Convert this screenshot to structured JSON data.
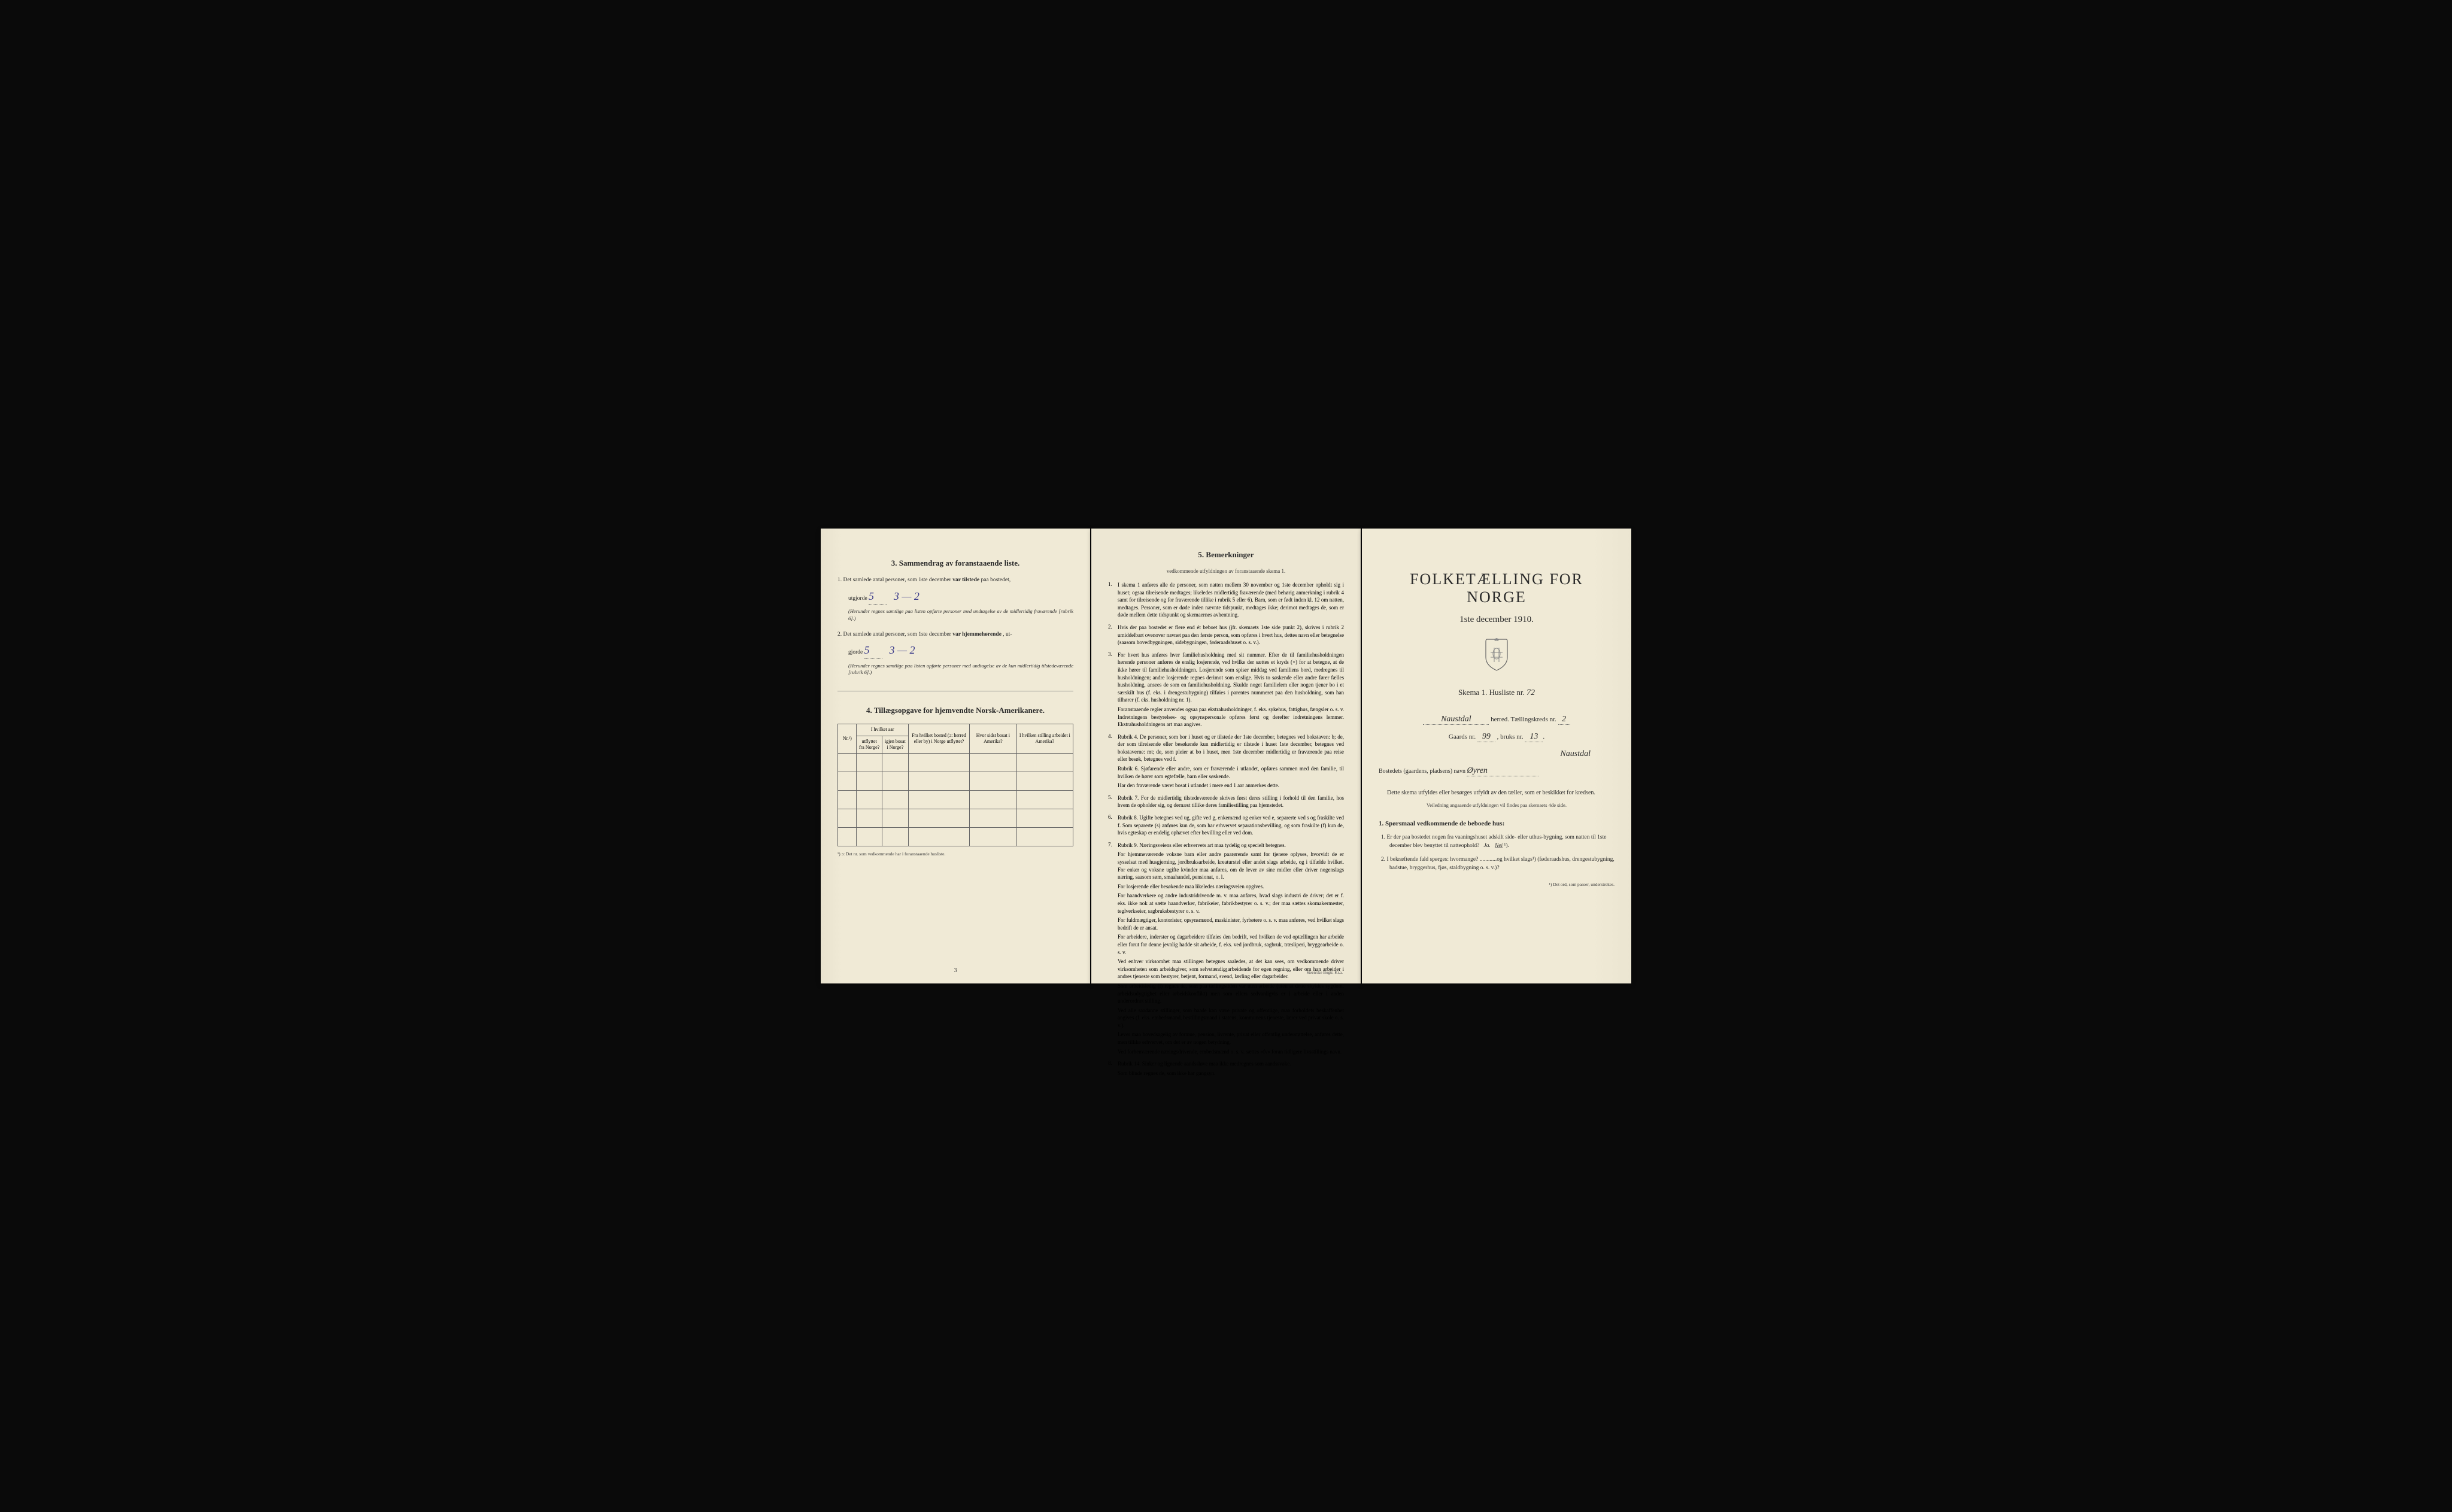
{
  "page_left": {
    "section3": {
      "header": "3.   Sammendrag av foranstaaende liste.",
      "item1_prefix": "1.  Det samlede antal personer, som 1ste december",
      "item1_bold": "var tilstede",
      "item1_suffix": "paa bostedet,",
      "utgjorde_label": "utgjorde",
      "hw_value1": "5",
      "hw_tally1": "3 — 2",
      "note1": "(Herunder regnes samtlige paa listen opførte personer med undtagelse av de midlertidig fraværende [rubrik 6].)",
      "item2_prefix": "2.  Det samlede antal personer, som 1ste december",
      "item2_bold": "var hjemmehørende",
      "item2_suffix": ", ut-",
      "gjorde_label": "gjorde",
      "hw_value2": "5",
      "hw_tally2": "3 — 2",
      "note2": "(Herunder regnes samtlige paa listen opførte personer med undtagelse av de kun midlertidig tilstedeværende [rubrik 6].)"
    },
    "section4": {
      "header": "4.  Tillægsopgave for hjemvendte Norsk-Amerikanere.",
      "col_nr": "Nr.¹)",
      "col_aar_header": "I hvilket aar",
      "col_utflyttet": "utflyttet fra Norge?",
      "col_igjen": "igjen bosat i Norge?",
      "col_bosted": "Fra hvilket bosted (ɔ: herred eller by) i Norge utflyttet?",
      "col_hvor": "Hvor sidst bosat i Amerika?",
      "col_stilling": "I hvilken stilling arbeidet i Amerika?",
      "footnote": "¹) ɔ: Det nr. som vedkommende har i foranstaaende husliste."
    },
    "page_number": "3"
  },
  "page_middle": {
    "section5_header": "5.   Bemerkninger",
    "section5_sub": "vedkommende utfyldningen av foranstaaende skema 1.",
    "items": [
      {
        "num": "1.",
        "text": "I skema 1 anføres alle de personer, som natten mellem 30 november og 1ste december opholdt sig i huset; ogsaa tilreisende medtages; likeledes midlertidig fraværende (med behørig anmerkning i rubrik 4 samt for tilreisende og for fraværende tillike i rubrik 5 eller 6). Barn, som er født inden kl. 12 om natten, medtages. Personer, som er døde inden nævnte tidspunkt, medtages ikke; derimot medtages de, som er døde mellem dette tidspunkt og skemaernes avhentning."
      },
      {
        "num": "2.",
        "text": "Hvis der paa bostedet er flere end ét beboet hus (jfr. skemaets 1ste side punkt 2), skrives i rubrik 2 umiddelbart ovenover navnet paa den første person, som opføres i hvert hus, dettes navn eller betegnelse (saasom hovedbygningen, sidebygningen, føderaadshuset o. s. v.)."
      },
      {
        "num": "3.",
        "text": "For hvert hus anføres hver familiehusholdning med sit nummer. Efter de til familiehusholdningen hørende personer anføres de enslig losjerende, ved hvilke der sættes et kryds (×) for at betegne, at de ikke hører til familiehusholdningen. Losjerende som spiser middag ved familiens bord, medregnes til husholdningen; andre losjerende regnes derimot som enslige. Hvis to søskende eller andre fører fælles husholdning, ansees de som en familiehusholdning. Skulde noget familielem eller nogen tjener bo i et særskilt hus (f. eks. i drengestubygning) tilføies i parentes nummeret paa den husholdning, som han tilhører (f. eks. husholdning nr. 1).\n   Foranstaaende regler anvendes ogsaa paa ekstrahusholdninger, f. eks. sykehus, fattighus, fængsler o. s. v. Indretningens bestyrelses- og opsynspersonale opføres først og derefter indretningens lemmer. Ekstrahusholdningens art maa angives."
      },
      {
        "num": "4.",
        "text": "Rubrik 4. De personer, som bor i huset og er tilstede der 1ste december, betegnes ved bokstaven: b; de, der som tilreisende eller besøkende kun midlertidig er tilstede i huset 1ste december, betegnes ved bokstaverne: mt; de, som pleier at bo i huset, men 1ste december midlertidig er fraværende paa reise eller besøk, betegnes ved f.\n   Rubrik 6. Sjøfarende eller andre, som er fraværende i utlandet, opføres sammen med den familie, til hvilken de hører som egtefælle, barn eller søskende.\n   Har den fraværende været bosat i utlandet i mere end 1 aar anmerkes dette."
      },
      {
        "num": "5.",
        "text": "Rubrik 7. For de midlertidig tilstedeværende skrives først deres stilling i forhold til den familie, hos hvem de opholder sig, og dernæst tillike deres familiestilling paa hjemstedet."
      },
      {
        "num": "6.",
        "text": "Rubrik 8. Ugifte betegnes ved ug, gifte ved g, enkemænd og enker ved e, separerte ved s og fraskilte ved f. Som separerte (s) anføres kun de, som har erhvervet separationsbevilling, og som fraskilte (f) kun de, hvis egteskap er endelig ophævet efter bevilling eller ved dom."
      },
      {
        "num": "7.",
        "text": "Rubrik 9. Næringsveiens eller erhvervets art maa tydelig og specielt betegnes.\n   For hjemmeværende voksne barn eller andre paarørende samt for tjenere oplyses, hvorvidt de er sysselsat med husgjerning, jordbruksarbeide, kreaturstel eller andet slags arbeide, og i tilfælde hvilket. For enker og voksne ugifte kvinder maa anføres, om de lever av sine midler eller driver nogenslags næring, saasom søm, smaahandel, pensionat, o. l.\n   For losjerende eller besøkende maa likeledes næringsveien opgives.\n   For haandverkere og andre industridrivende m. v. maa anføres, hvad slags industri de driver; det er f. eks. ikke nok at sætte haandverker, fabrikeier, fabrikbestyrer o. s. v.; der maa sættes skomakermester, teglverkseier, sagbruksbestyrer o. s. v.\n   For fuldmægtiger, kontorister, opsynsmænd, maskinister, fyrbøtere o. s. v. maa anføres, ved hvilket slags bedrift de er ansat.\n   For arbeidere, inderster og dagarbeidere tilføies den bedrift, ved hvilken de ved optællingen har arbeide eller forut for denne jevnlig hadde sit arbeide, f. eks. ved jordbruk, sagbruk, træsliperi, bryggearbeide o. s. v.\n   Ved enhver virksomhet maa stillingen betegnes saaledes, at det kan sees, om vedkommende driver virksomheten som arbeidsgiver, som selvstændig arbeidende for egen regning, eller om han arbeider i andres tjeneste som bestyrer, betjent, formand, svend, lærling eller dagarbeider.\n   Som arbeidsledig (l) regnes de, som paa tællingstiden var uten arbeide (uten at dette skyldes sygdom, arbeidsudygtighet eller arbeidskonflikt) men som ellers sedvanligvis er i arbeide eller i anden underordnet stilling.\n   Ved alle saadanne stillinger, som baade kan være private og offentlige, maa forholdets beskaffenhet angives (f. eks. embedsmand, bestillingsmand i statens, kommunens tjeneste, lærer ved privat skole o. s. v.).\n   Lever man hovedsagelig av formue, pension, livrente, privat eller offentlig understøttelse, anføres dette, men tillike erhvervet, om det er av nogen betydning.\n   Ved forhenværende næringsdrivende, embedsmænd o. s. v. sættes «fv» foran tidligere livsstillings navn."
      },
      {
        "num": "8.",
        "text": "Rubrik 14. Sinker og lignende aandssløve maa ikke medregnes som aandssvake.\n   Som blinde regnes de, som ikke har gangsyn."
      }
    ],
    "page_number": "4",
    "printer": "Steen'ske Bogtr. Kr.a."
  },
  "page_right": {
    "main_title": "FOLKETÆLLING FOR NORGE",
    "sub_title": "1ste december 1910.",
    "skema_label": "Skema 1.   Husliste nr.",
    "skema_nr": "72",
    "herred_hw": "Naustdal",
    "herred_label": "herred.  Tællingskreds nr.",
    "kreds_nr": "2",
    "gaards_label": "Gaards nr.",
    "gaards_nr": "99",
    "bruks_label": ", bruks nr.",
    "bruks_nr": "13",
    "naustdal2": "Naustdal",
    "bosted_label": "Bostedets (gaardens, pladsens) navn",
    "bosted_navn": "Øyren",
    "instruction": "Dette skema utfyldes eller besørges utfyldt av den tæller, som er beskikket for kredsen.",
    "instruction_small": "Veiledning angaaende utfyldningen vil findes paa skemaets 4de side.",
    "q_header": "1. Spørsmaal vedkommende de beboede hus:",
    "q1": "1. Er der paa bostedet nogen fra vaaningshuset adskilt side- eller uthus-bygning, som natten til 1ste december blev benyttet til natteophold?   Ja.   Nei ¹).",
    "q2": "2. I bekræftende fald spørges: hvormange? ............og hvilket slags¹) (føderaadshus, drengestubygning, badstue, bryggerhus, fjøs, staldbygning o. s. v.)?",
    "footnote": "¹) Det ord, som passer, understrekes."
  },
  "colors": {
    "page_bg": "#f0ead6",
    "text": "#2a2a2a",
    "handwriting_blue": "#3a3a8a",
    "border": "#666666",
    "background": "#0a0a0a"
  }
}
